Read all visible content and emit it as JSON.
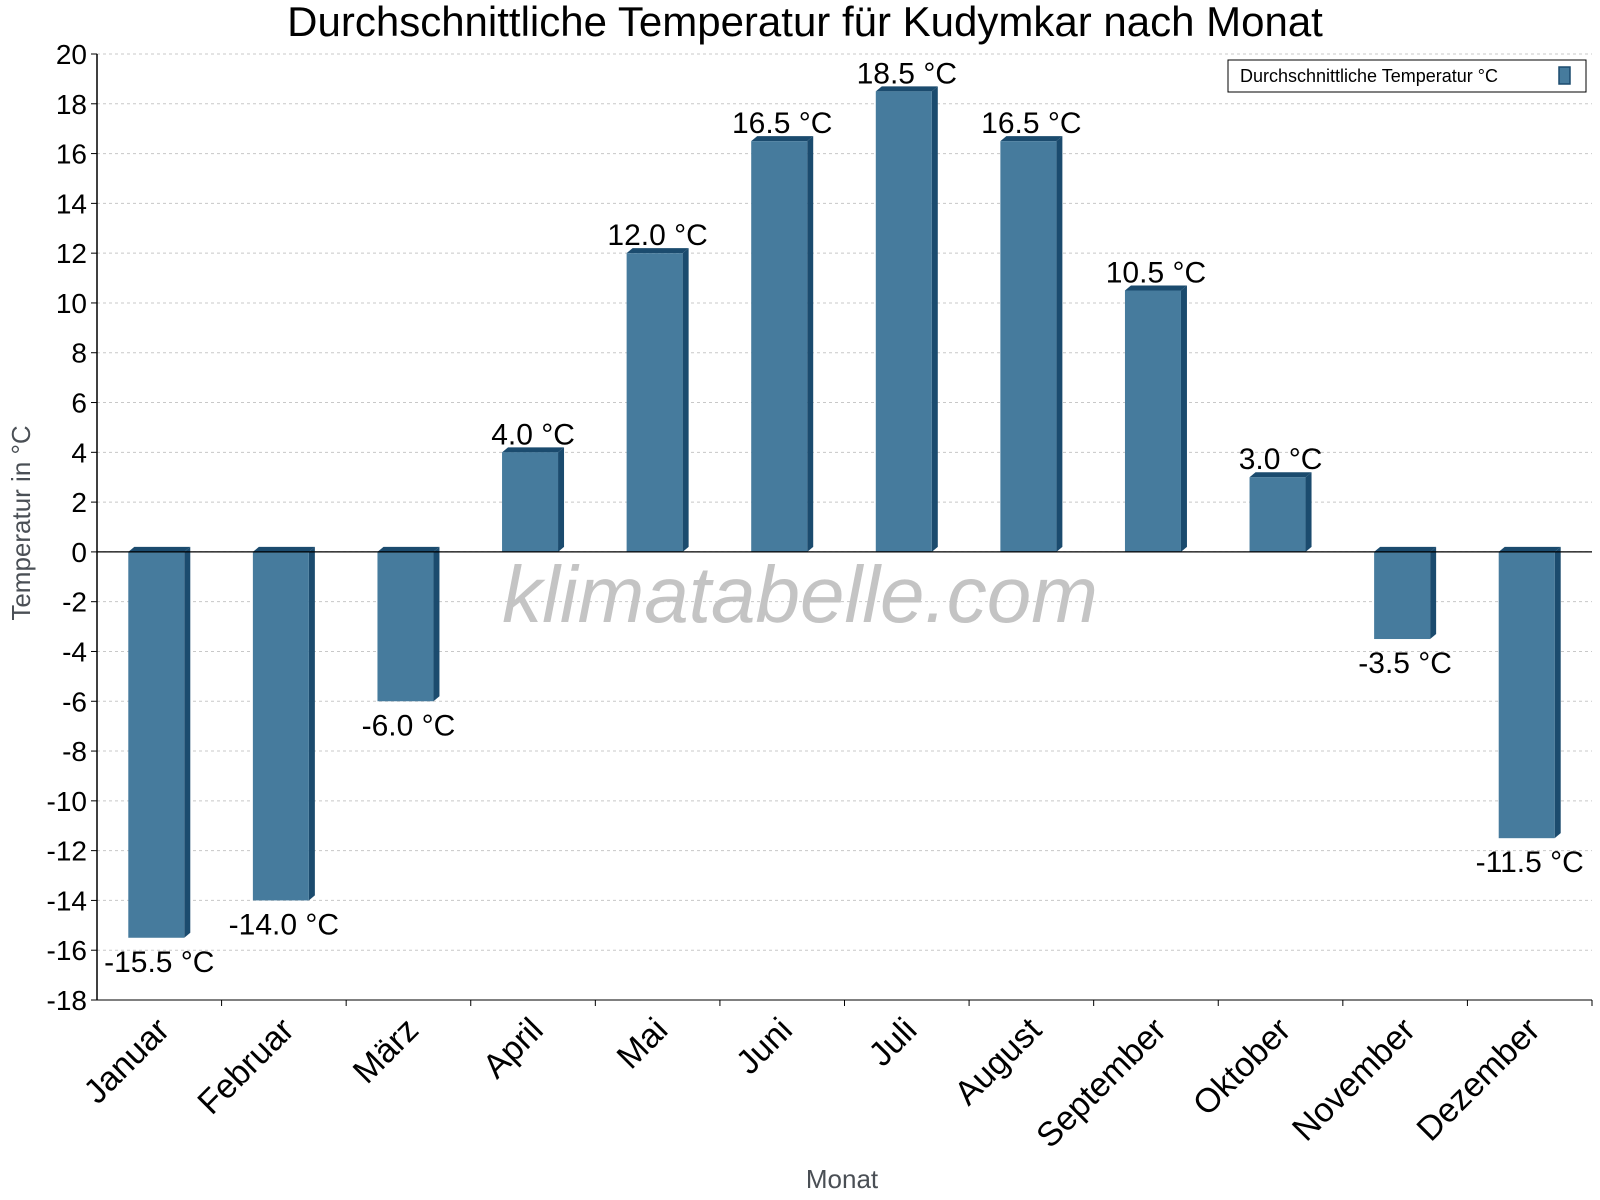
{
  "watermark": "klimatabelle.com",
  "colors": {
    "bar_front": "#467b9d",
    "bar_side": "#1b4b6e",
    "grid": "#c8c8c8",
    "axis": "#000000"
  },
  "chart_data": {
    "type": "bar",
    "title": "Durchschnittliche Temperatur für Kudymkar nach Monat",
    "xlabel": "Monat",
    "ylabel": "Temperatur in °C",
    "ylim": [
      -18,
      20
    ],
    "ytick_step": 2,
    "grid": true,
    "legend_position": "top-right",
    "categories": [
      "Januar",
      "Februar",
      "März",
      "April",
      "Mai",
      "Juni",
      "Juli",
      "August",
      "September",
      "Oktober",
      "November",
      "Dezember"
    ],
    "series": [
      {
        "name": "Durchschnittliche Temperatur °C",
        "values": [
          -15.5,
          -14.0,
          -6.0,
          4.0,
          12.0,
          16.5,
          18.5,
          16.5,
          10.5,
          3.0,
          -3.5,
          -11.5
        ],
        "labels": [
          "-15.5 °C",
          "-14.0 °C",
          "-6.0 °C",
          "4.0 °C",
          "12.0 °C",
          "16.5 °C",
          "18.5 °C",
          "16.5 °C",
          "10.5 °C",
          "3.0 °C",
          "-3.5 °C",
          "-11.5 °C"
        ]
      }
    ]
  }
}
